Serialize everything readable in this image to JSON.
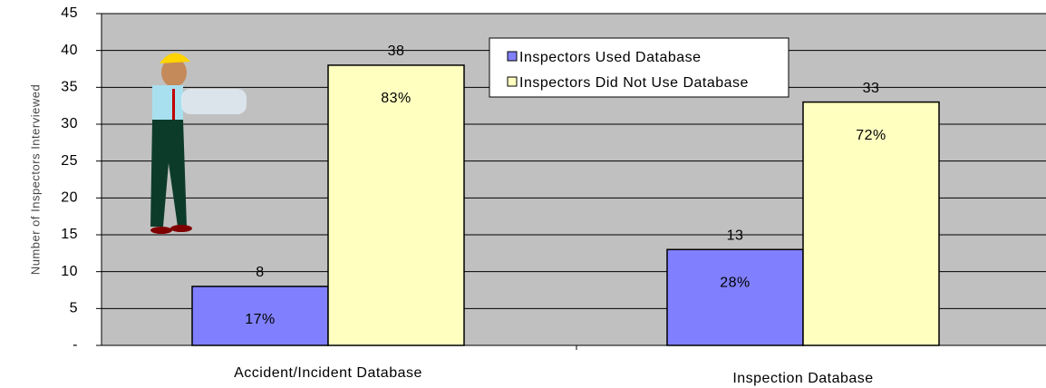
{
  "chart_data": {
    "type": "bar",
    "y_label": "Number of Inspectors Interviewed",
    "categories": [
      "Accident/Incident Database",
      "Inspection Database"
    ],
    "series": [
      {
        "name": "Inspectors Used Database",
        "color": "#8080ff",
        "values": [
          8,
          13
        ],
        "percent_labels": [
          "17%",
          "28%"
        ]
      },
      {
        "name": "Inspectors Did Not Use Database",
        "color": "#ffffc0",
        "values": [
          38,
          33
        ],
        "percent_labels": [
          "83%",
          "72%"
        ]
      }
    ],
    "ylim": [
      0,
      45
    ],
    "yticks": [
      {
        "value": 0,
        "label": "-"
      },
      5,
      10,
      15,
      20,
      25,
      30,
      35,
      40,
      45
    ],
    "grid": true,
    "legend": "top-center"
  }
}
